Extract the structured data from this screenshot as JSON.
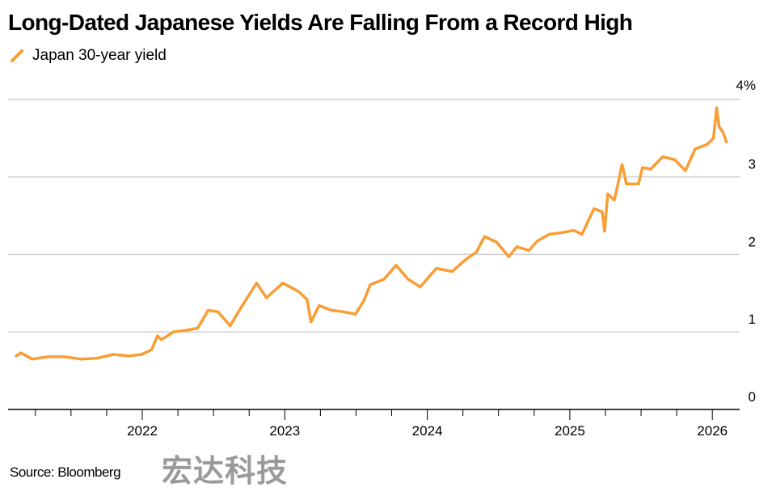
{
  "chart_data": {
    "type": "line",
    "title": "Long-Dated Japanese Yields Are Falling From a Record High",
    "xlabel": "",
    "ylabel": "",
    "x_tick_labels": [
      "2022",
      "2023",
      "2024",
      "2025",
      "2026"
    ],
    "y_tick_labels": [
      "0",
      "1",
      "2",
      "3",
      "4%"
    ],
    "y_ticks": [
      0,
      1,
      2,
      3,
      4
    ],
    "ylim": [
      0,
      4
    ],
    "xlim": [
      "2021-01-01",
      "2026-03-15"
    ],
    "grid": true,
    "legend_position": "top-left",
    "y_axis_side": "right",
    "series": [
      {
        "name": "Japan 30-year yield",
        "color": "#f99d35",
        "x": [
          "2021-02-12",
          "2021-02-24",
          "2021-03-25",
          "2021-05-05",
          "2021-06-16",
          "2021-07-27",
          "2021-09-06",
          "2021-10-18",
          "2021-11-28",
          "2021-12-30",
          "2022-01-25",
          "2022-02-09",
          "2022-02-19",
          "2022-03-22",
          "2022-04-22",
          "2022-05-23",
          "2022-06-19",
          "2022-07-14",
          "2022-08-14",
          "2022-09-14",
          "2022-10-21",
          "2022-11-15",
          "2022-12-27",
          "2023-02-06",
          "2023-02-27",
          "2023-03-09",
          "2023-03-30",
          "2023-04-30",
          "2023-05-31",
          "2023-07-01",
          "2023-07-22",
          "2023-08-08",
          "2023-09-12",
          "2023-10-13",
          "2023-11-13",
          "2023-12-14",
          "2024-01-24",
          "2024-03-05",
          "2024-04-05",
          "2024-05-06",
          "2024-05-27",
          "2024-06-27",
          "2024-07-28",
          "2024-08-18",
          "2024-09-18",
          "2024-10-09",
          "2024-11-09",
          "2024-12-10",
          "2025-01-11",
          "2025-02-01",
          "2025-03-04",
          "2025-03-25",
          "2025-03-31",
          "2025-04-08",
          "2025-04-25",
          "2025-05-15",
          "2025-05-26",
          "2025-06-26",
          "2025-07-06",
          "2025-07-27",
          "2025-08-27",
          "2025-09-27",
          "2025-10-24",
          "2025-11-18",
          "2025-12-19",
          "2026-01-04",
          "2026-01-12",
          "2026-01-18",
          "2026-01-29",
          "2026-02-06"
        ],
        "values": [
          0.69,
          0.73,
          0.65,
          0.68,
          0.68,
          0.65,
          0.66,
          0.71,
          0.69,
          0.71,
          0.77,
          0.95,
          0.9,
          1.0,
          1.02,
          1.05,
          1.28,
          1.26,
          1.08,
          1.34,
          1.63,
          1.44,
          1.63,
          1.52,
          1.42,
          1.13,
          1.34,
          1.28,
          1.26,
          1.23,
          1.4,
          1.61,
          1.68,
          1.86,
          1.68,
          1.58,
          1.82,
          1.78,
          1.92,
          2.03,
          2.23,
          2.16,
          1.97,
          2.1,
          2.05,
          2.17,
          2.26,
          2.28,
          2.31,
          2.26,
          2.59,
          2.55,
          2.3,
          2.78,
          2.7,
          3.16,
          2.91,
          2.91,
          3.12,
          3.1,
          3.26,
          3.22,
          3.08,
          3.36,
          3.42,
          3.5,
          3.89,
          3.65,
          3.57,
          3.45
        ]
      }
    ]
  },
  "footer": {
    "source": "Source: Bloomberg",
    "watermark": "宏达科技"
  }
}
